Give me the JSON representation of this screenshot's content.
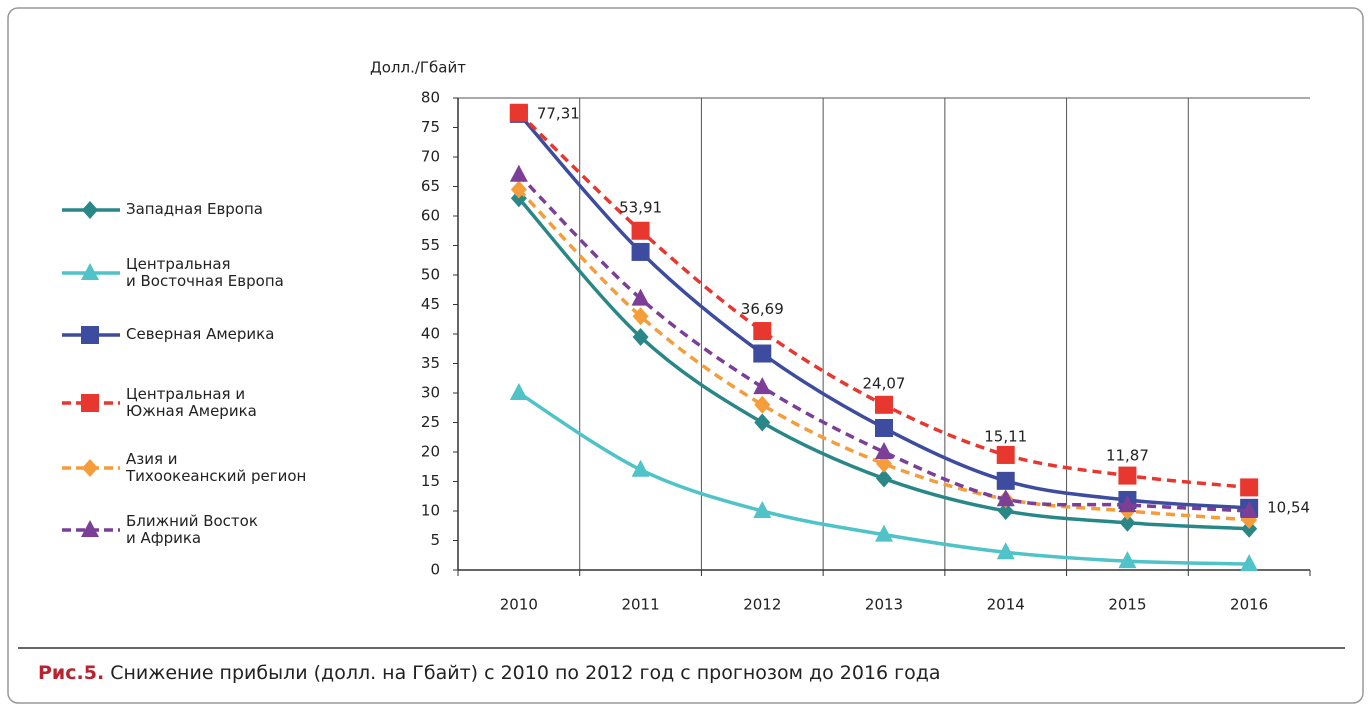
{
  "chart_data": {
    "type": "line",
    "y_axis_label": "Долл./Гбайт",
    "caption_label": "Рис.5.",
    "caption": "Снижение прибыли (долл. на Гбайт) с 2010 по 2012 год с прогнозом до 2016 года",
    "categories": [
      "2010",
      "2011",
      "2012",
      "2013",
      "2014",
      "2015",
      "2016"
    ],
    "ylim": [
      0,
      80
    ],
    "yticks": [
      0,
      5,
      10,
      15,
      20,
      25,
      30,
      35,
      40,
      45,
      50,
      55,
      60,
      65,
      70,
      75,
      80
    ],
    "grid": true,
    "legend": "left",
    "series": [
      {
        "name": "Западная Европа",
        "color": "#2a8787",
        "marker": "diamond",
        "dashed": false,
        "values": [
          63,
          39.5,
          25,
          15.5,
          10,
          8,
          7
        ]
      },
      {
        "name": "Центральная\nи Восточная Европа",
        "color": "#4fc3c8",
        "marker": "triangle",
        "dashed": false,
        "values": [
          30,
          17,
          10,
          6,
          3,
          1.5,
          1
        ]
      },
      {
        "name": "Северная Америка",
        "color": "#3d4c9e",
        "marker": "square",
        "dashed": false,
        "values": [
          77.31,
          53.91,
          36.69,
          24.07,
          15.11,
          11.87,
          10.54
        ],
        "value_labels": [
          "77,31",
          "53,91",
          "36,69",
          "24,07",
          "15,11",
          "11,87",
          "10,54"
        ]
      },
      {
        "name": "Центральная и\nЮжная Америка",
        "color": "#e8372f",
        "marker": "square",
        "dashed": true,
        "values": [
          77.5,
          57.5,
          40.5,
          28,
          19.5,
          16,
          14
        ]
      },
      {
        "name": "Азия и\nТихоокеанский регион",
        "color": "#f59d3a",
        "marker": "diamond",
        "dashed": true,
        "values": [
          64.5,
          43,
          28,
          18,
          12,
          10,
          8.5
        ]
      },
      {
        "name": "Ближний Восток\nи Африка",
        "color": "#7b3f98",
        "marker": "triangle",
        "dashed": true,
        "values": [
          67,
          46,
          31,
          20,
          12,
          11,
          10
        ]
      }
    ]
  }
}
